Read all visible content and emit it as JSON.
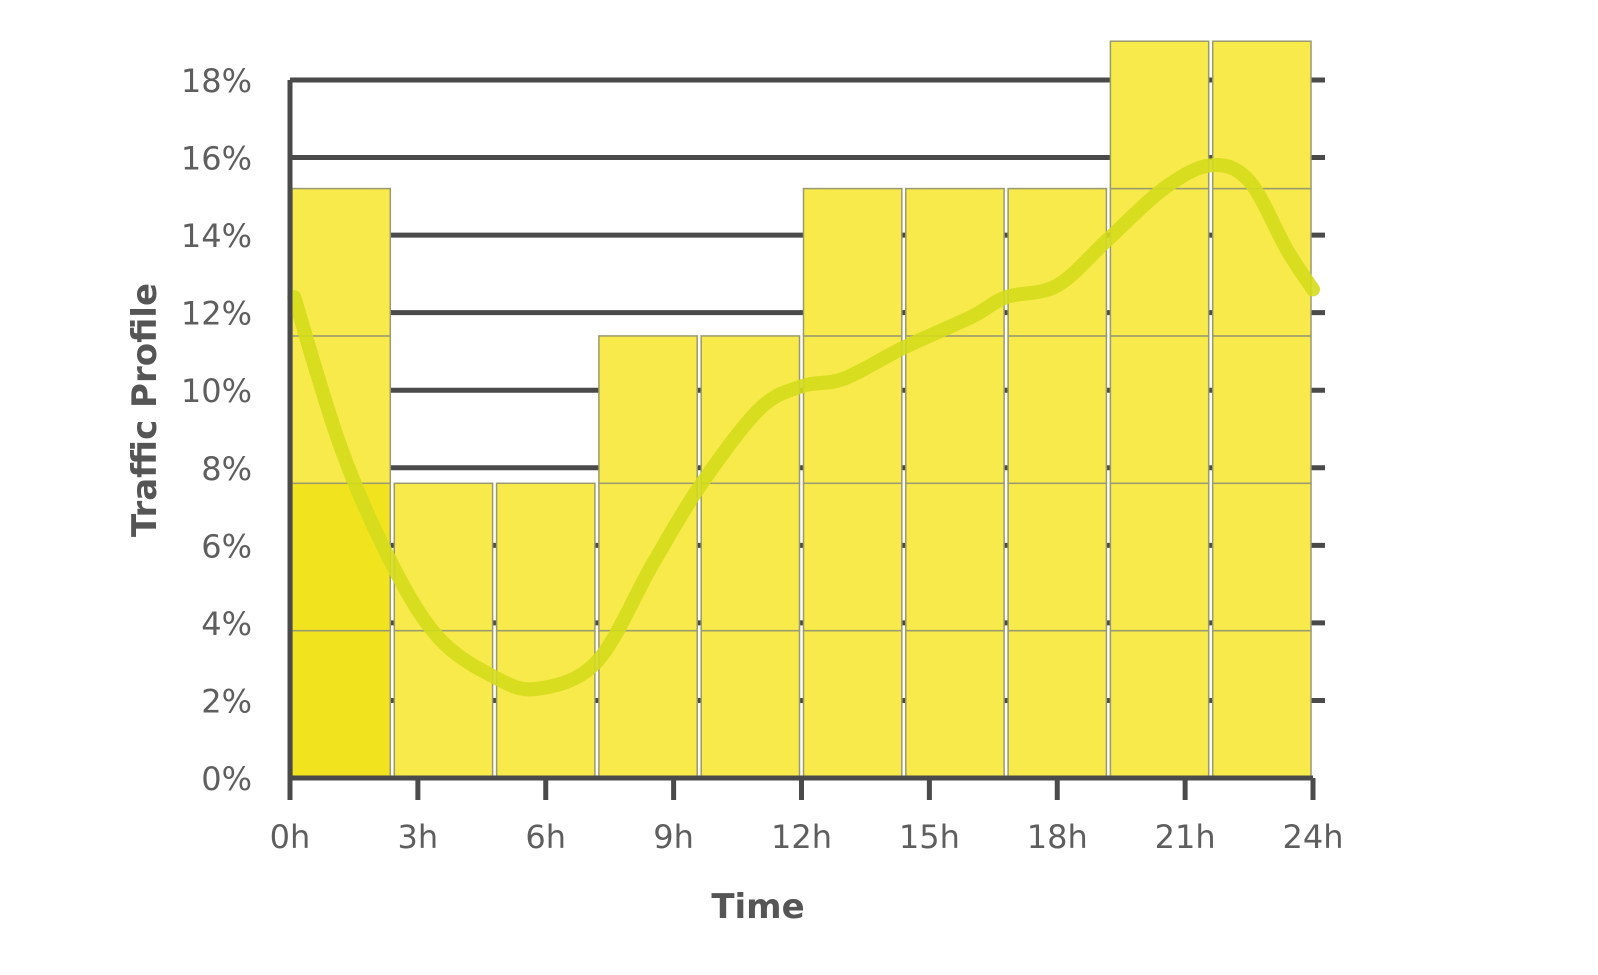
{
  "chart_data": {
    "type": "bar",
    "xlabel": "Time",
    "ylabel": "Traffic Profile",
    "x_ticks": [
      "0h",
      "3h",
      "6h",
      "9h",
      "12h",
      "15h",
      "18h",
      "21h",
      "24h"
    ],
    "x_range": [
      0,
      24
    ],
    "y_ticks": [
      "0%",
      "2%",
      "4%",
      "6%",
      "8%",
      "10%",
      "12%",
      "14%",
      "16%",
      "18%"
    ],
    "ylim": [
      0,
      18
    ],
    "y_unit": "%",
    "grid": true,
    "bar_color": "#f7ea4a",
    "first_bar_color": "#f2e31f",
    "line_color": "#d4dc1c",
    "bar_block_size": 3.8,
    "bars": [
      {
        "x_start": 0.0,
        "x_end": 2.4,
        "value": 15.2
      },
      {
        "x_start": 2.4,
        "x_end": 4.8,
        "value": 7.6
      },
      {
        "x_start": 4.8,
        "x_end": 7.2,
        "value": 7.6
      },
      {
        "x_start": 7.2,
        "x_end": 9.6,
        "value": 11.4
      },
      {
        "x_start": 9.6,
        "x_end": 12.0,
        "value": 11.4
      },
      {
        "x_start": 12.0,
        "x_end": 14.4,
        "value": 15.2
      },
      {
        "x_start": 14.4,
        "x_end": 16.8,
        "value": 15.2
      },
      {
        "x_start": 16.8,
        "x_end": 19.2,
        "value": 15.2
      },
      {
        "x_start": 19.2,
        "x_end": 21.6,
        "value": 19.0
      },
      {
        "x_start": 21.6,
        "x_end": 24.0,
        "value": 19.0
      }
    ],
    "line": {
      "x": [
        0.1,
        1.2,
        2.4,
        3.5,
        4.8,
        5.8,
        7.2,
        8.5,
        9.6,
        11.0,
        12.0,
        13.0,
        14.4,
        16.0,
        16.8,
        18.0,
        19.2,
        20.5,
        21.6,
        22.5,
        23.4,
        24.0
      ],
      "y": [
        12.4,
        8.5,
        5.5,
        3.6,
        2.6,
        2.3,
        3.0,
        5.5,
        7.5,
        9.5,
        10.1,
        10.3,
        11.1,
        11.9,
        12.4,
        12.7,
        13.9,
        15.2,
        15.8,
        15.4,
        13.6,
        12.6
      ]
    }
  }
}
